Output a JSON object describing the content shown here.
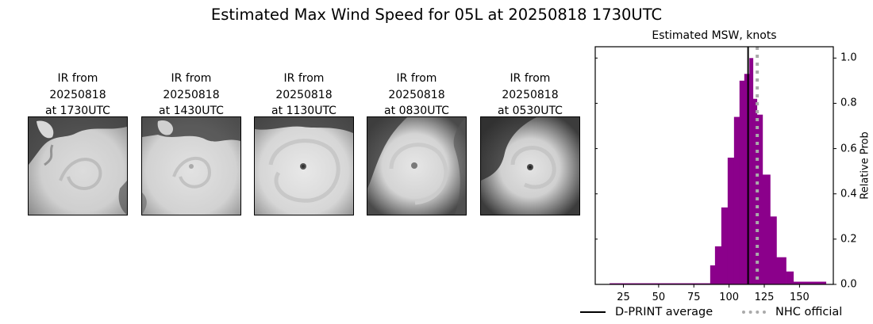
{
  "figure": {
    "suptitle": "Estimated Max Wind Speed for 05L at 20250818 1730UTC"
  },
  "panels": [
    {
      "title": "IR from\n20250818\nat 1730UTC",
      "label": "IR from 20250818 at 1730UTC"
    },
    {
      "title": "IR from\n20250818\nat 1430UTC",
      "label": "IR from 20250818 at 1430UTC"
    },
    {
      "title": "IR from\n20250818\nat 1130UTC",
      "label": "IR from 20250818 at 1130UTC"
    },
    {
      "title": "IR from\n20250818\nat 0830UTC",
      "label": "IR from 20250818 at 0830UTC"
    },
    {
      "title": "IR from\n20250818\nat 0530UTC",
      "label": "IR from 20250818 at 0530UTC"
    }
  ],
  "chart_data": {
    "type": "bar",
    "title": "Estimated MSW, knots",
    "xlabel": "",
    "ylabel": "Relative Prob",
    "xlim": [
      5,
      174
    ],
    "ylim": [
      0,
      1.05
    ],
    "xticks": [
      25,
      50,
      75,
      100,
      125,
      150
    ],
    "yticks": [
      0.0,
      0.2,
      0.4,
      0.6,
      0.8,
      1.0
    ],
    "ytick_labels": [
      "0.0",
      "0.2",
      "0.4",
      "0.6",
      "0.8",
      "1.0"
    ],
    "y_axis_side": "right",
    "grid": false,
    "bar_color": "#8b008b",
    "bins": [
      {
        "x0": 15.2,
        "x1": 86.6,
        "value": 0.005
      },
      {
        "x0": 86.6,
        "x1": 90.0,
        "value": 0.084
      },
      {
        "x0": 90.0,
        "x1": 94.5,
        "value": 0.168
      },
      {
        "x0": 94.5,
        "x1": 99.0,
        "value": 0.34
      },
      {
        "x0": 99.0,
        "x1": 103.5,
        "value": 0.56
      },
      {
        "x0": 103.5,
        "x1": 107.4,
        "value": 0.74
      },
      {
        "x0": 107.4,
        "x1": 110.8,
        "value": 0.9
      },
      {
        "x0": 110.8,
        "x1": 114.4,
        "value": 0.93
      },
      {
        "x0": 114.4,
        "x1": 117.0,
        "value": 1.0
      },
      {
        "x0": 117.0,
        "x1": 119.8,
        "value": 0.82
      },
      {
        "x0": 119.8,
        "x1": 123.8,
        "value": 0.75
      },
      {
        "x0": 123.8,
        "x1": 129.2,
        "value": 0.485
      },
      {
        "x0": 129.2,
        "x1": 133.7,
        "value": 0.3
      },
      {
        "x0": 133.7,
        "x1": 140.5,
        "value": 0.12
      },
      {
        "x0": 140.5,
        "x1": 145.7,
        "value": 0.057
      },
      {
        "x0": 145.7,
        "x1": 168.8,
        "value": 0.012
      }
    ],
    "lines": [
      {
        "name": "D-PRINT average",
        "x": 113.5,
        "color": "#000000",
        "style": "solid"
      },
      {
        "name": "NHC official",
        "x": 120,
        "color": "#aaaaaa",
        "style": "dotted"
      }
    ],
    "legend": {
      "position": "lower center (below axes)",
      "entries": [
        "D-PRINT average",
        "NHC official"
      ]
    }
  }
}
